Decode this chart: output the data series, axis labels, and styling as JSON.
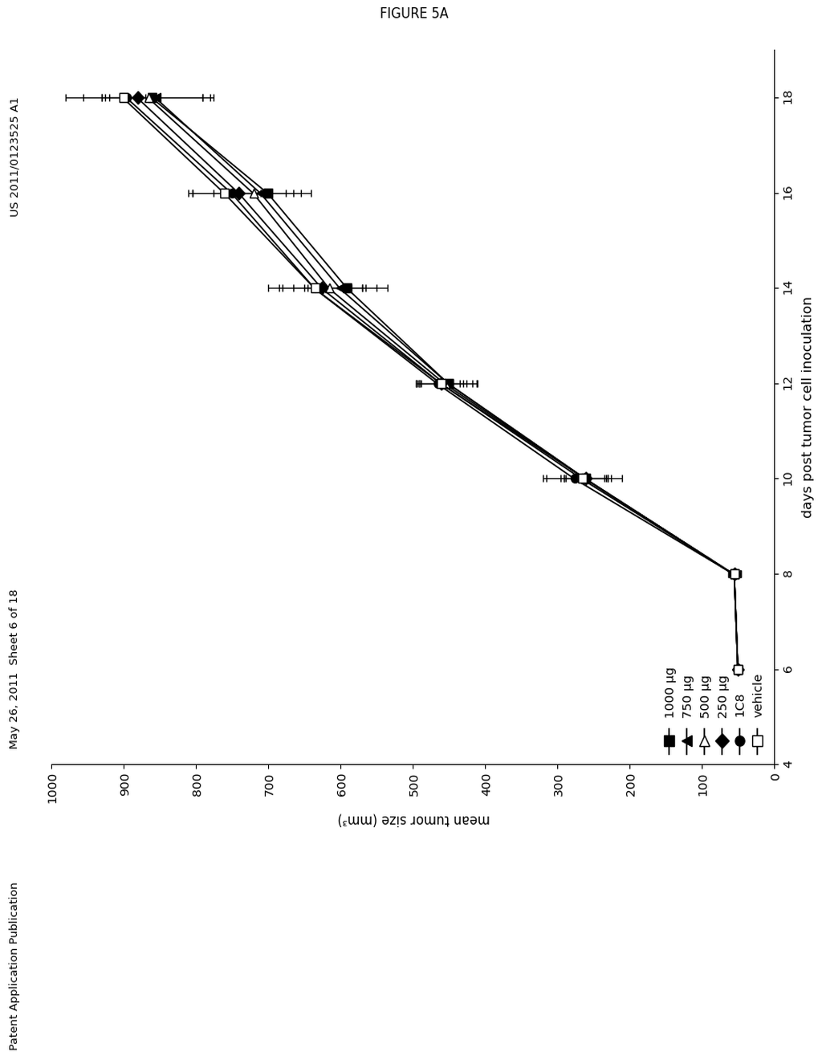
{
  "title": "FIGURE 5A",
  "xlabel": "days post tumor cell inoculation",
  "ylabel": "mean tumor size (mm³)",
  "header_left": "Patent Application Publication",
  "header_mid": "May 26, 2011  Sheet 6 of 18",
  "header_right": "US 2011/0123525 A1",
  "x_data": [
    6,
    8,
    10,
    12,
    14,
    16,
    18
  ],
  "series": [
    {
      "label": "1000 μg",
      "marker": "s",
      "filled": true,
      "y": [
        50,
        55,
        260,
        450,
        590,
        700,
        860
      ],
      "yerr": [
        5,
        8,
        35,
        40,
        55,
        60,
        70
      ]
    },
    {
      "label": "750 μg",
      "marker": "^",
      "filled": true,
      "y": [
        50,
        55,
        260,
        450,
        600,
        710,
        855
      ],
      "yerr": [
        5,
        8,
        30,
        38,
        50,
        55,
        65
      ]
    },
    {
      "label": "500 μg",
      "marker": ">",
      "filled": false,
      "y": [
        50,
        55,
        260,
        455,
        615,
        720,
        865
      ],
      "yerr": [
        5,
        8,
        28,
        38,
        50,
        55,
        90
      ]
    },
    {
      "label": "250 μg",
      "marker": "D",
      "filled": true,
      "y": [
        50,
        55,
        260,
        460,
        625,
        740,
        880
      ],
      "yerr": [
        5,
        8,
        30,
        35,
        55,
        65,
        100
      ]
    },
    {
      "label": "1C8",
      "marker": "o",
      "filled": true,
      "y": [
        50,
        55,
        275,
        465,
        635,
        750,
        895
      ],
      "yerr": [
        5,
        8,
        40,
        30,
        50,
        55,
        30
      ]
    },
    {
      "label": "vehicle",
      "marker": "s",
      "filled": false,
      "y": [
        50,
        55,
        265,
        460,
        635,
        760,
        900
      ],
      "yerr": [
        5,
        8,
        55,
        30,
        65,
        50,
        30
      ]
    }
  ],
  "xlim": [
    4,
    19
  ],
  "ylim": [
    0,
    1000
  ],
  "xticks": [
    4,
    6,
    8,
    10,
    12,
    14,
    16,
    18
  ],
  "yticks": [
    0,
    100,
    200,
    300,
    400,
    500,
    600,
    700,
    800,
    900,
    1000
  ],
  "background_color": "#ffffff"
}
